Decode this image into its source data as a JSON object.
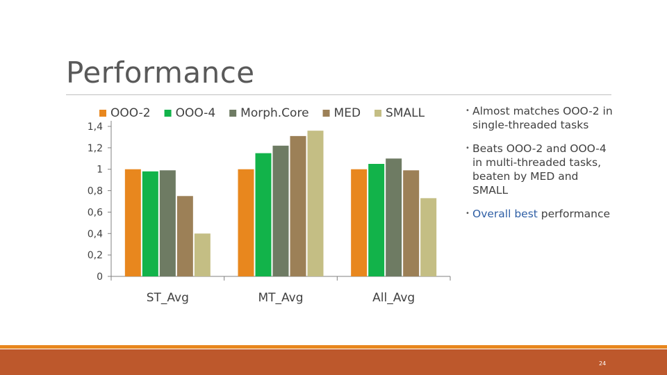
{
  "slide": {
    "title": "Performance",
    "page_number": "24"
  },
  "bullets": [
    {
      "text": "Almost matches OOO-2 in single-threaded tasks"
    },
    {
      "text": "Beats OOO-2 and OOO-4 in multi-threaded tasks, beaten by MED and SMALL"
    },
    {
      "text_accent": "Overall best",
      "text_rest": "performance"
    }
  ],
  "colors": {
    "OOO-2": "#e8871e",
    "OOO-4": "#12b34a",
    "Morph.Core": "#6e7b63",
    "MED": "#9c8057",
    "SMALL": "#c4be84",
    "accent_text": "#2f5fa5",
    "footer_band": "#bd582c",
    "footer_line": "#e8871e"
  },
  "chart_data": {
    "type": "bar",
    "title": "",
    "xlabel": "",
    "ylabel": "",
    "categories": [
      "ST_Avg",
      "MT_Avg",
      "All_Avg"
    ],
    "series": [
      {
        "name": "OOO-2",
        "values": [
          1.0,
          1.0,
          1.0
        ]
      },
      {
        "name": "OOO-4",
        "values": [
          0.98,
          1.15,
          1.05
        ]
      },
      {
        "name": "Morph.Core",
        "values": [
          0.99,
          1.22,
          1.1
        ]
      },
      {
        "name": "MED",
        "values": [
          0.75,
          1.31,
          0.99
        ]
      },
      {
        "name": "SMALL",
        "values": [
          0.4,
          1.36,
          0.73
        ]
      }
    ],
    "ylim": [
      0,
      1.4
    ],
    "yticks": [
      "0",
      "0,2",
      "0,4",
      "0,6",
      "0,8",
      "1",
      "1,2",
      "1,4"
    ],
    "legend": "top",
    "grid": false
  }
}
